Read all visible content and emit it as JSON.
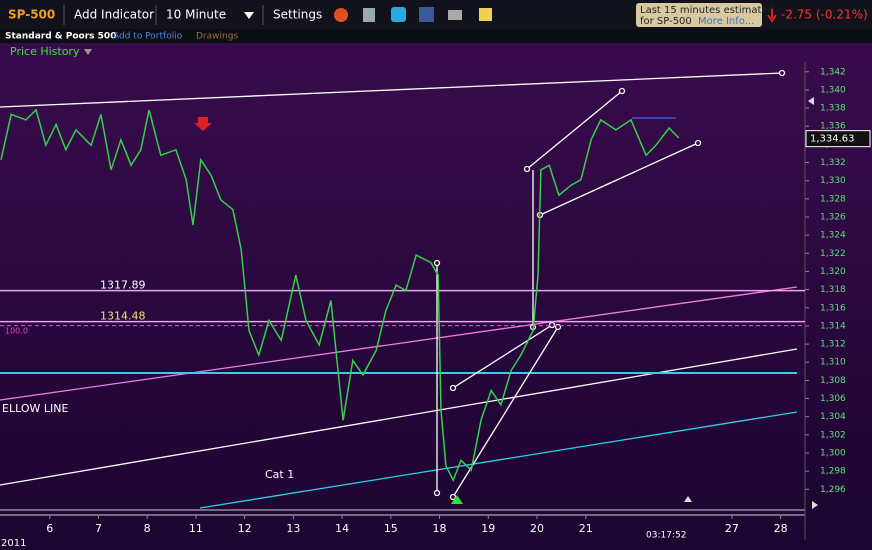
{
  "toolbar": {
    "symbol": "SP-500",
    "add_indicator": "Add Indicator",
    "interval": "10 Minute",
    "settings": "Settings",
    "notice_line1": "Last 15 minutes estimated",
    "notice_line2": "for SP-500",
    "more_info": "More Info...",
    "change": "-2.75 (-0.21%)",
    "name": "Standard & Poors 500",
    "add_to_portfolio": "Add to Portfolio",
    "drawings": "Drawings",
    "price_history": "Price History"
  },
  "chart_data": {
    "type": "line",
    "color": "#35d04a",
    "annotations": {
      "fib": "100.0",
      "yellow_line": "ELLOW LINE",
      "cat": "Cat 1",
      "time": "03:17:52",
      "year": "2011"
    },
    "levels": [
      1317.89,
      1314.48
    ],
    "last_price": {
      "value": 1334.63,
      "label": "1,334.63"
    },
    "x": [
      0.0,
      0.21,
      0.51,
      0.72,
      0.92,
      1.13,
      1.33,
      1.54,
      1.85,
      2.05,
      2.26,
      2.46,
      2.67,
      2.87,
      3.04,
      3.28,
      3.59,
      3.8,
      3.94,
      4.1,
      4.31,
      4.51,
      4.76,
      4.93,
      5.09,
      5.29,
      5.5,
      5.75,
      6.05,
      6.26,
      6.53,
      6.77,
      7.02,
      7.22,
      7.43,
      7.7,
      7.9,
      8.11,
      8.31,
      8.52,
      8.82,
      8.97,
      9.03,
      9.13,
      9.28,
      9.44,
      9.65,
      9.85,
      10.06,
      10.26,
      10.47,
      10.67,
      10.92,
      11.02,
      11.08,
      11.25,
      11.45,
      11.7,
      11.9,
      12.11,
      12.31,
      12.62,
      12.93,
      13.24,
      13.44,
      13.71,
      13.91
    ],
    "values": [
      1332.3,
      1337.3,
      1336.7,
      1337.8,
      1333.9,
      1336.2,
      1333.4,
      1335.6,
      1333.9,
      1337.3,
      1331.2,
      1334.5,
      1331.7,
      1333.4,
      1337.8,
      1332.8,
      1333.4,
      1330.1,
      1325.1,
      1332.3,
      1330.6,
      1327.9,
      1326.8,
      1322.4,
      1313.5,
      1310.8,
      1314.6,
      1312.4,
      1319.6,
      1314.6,
      1311.9,
      1316.8,
      1303.6,
      1310.2,
      1308.6,
      1311.3,
      1315.7,
      1318.5,
      1317.9,
      1321.8,
      1321.0,
      1319.6,
      1304.7,
      1298.6,
      1297.0,
      1299.2,
      1298.1,
      1303.6,
      1306.9,
      1305.3,
      1309.1,
      1310.8,
      1313.5,
      1319.6,
      1331.2,
      1331.7,
      1328.4,
      1329.5,
      1330.1,
      1334.5,
      1336.7,
      1335.6,
      1336.7,
      1332.8,
      1333.9,
      1335.8,
      1334.7
    ],
    "xlim": [
      0,
      16.5
    ],
    "xticks": [
      {
        "value": 1,
        "label": "6"
      },
      {
        "value": 2,
        "label": "7"
      },
      {
        "value": 3,
        "label": "8"
      },
      {
        "value": 4,
        "label": "11"
      },
      {
        "value": 5,
        "label": "12"
      },
      {
        "value": 6,
        "label": "13"
      },
      {
        "value": 7,
        "label": "14"
      },
      {
        "value": 8,
        "label": "15"
      },
      {
        "value": 9,
        "label": "18"
      },
      {
        "value": 10,
        "label": "19"
      },
      {
        "value": 11,
        "label": "20"
      },
      {
        "value": 12,
        "label": "21"
      },
      {
        "value": 15,
        "label": "27"
      },
      {
        "value": 16,
        "label": "28"
      }
    ],
    "ylim": [
      1293.5,
      1345.5
    ],
    "yticks": [
      {
        "value": 1296,
        "label": "1,296"
      },
      {
        "value": 1298,
        "label": "1,298"
      },
      {
        "value": 1300,
        "label": "1,300"
      },
      {
        "value": 1302,
        "label": "1,302"
      },
      {
        "value": 1304,
        "label": "1,304"
      },
      {
        "value": 1306,
        "label": "1,306"
      },
      {
        "value": 1308,
        "label": "1,308"
      },
      {
        "value": 1310,
        "label": "1,310"
      },
      {
        "value": 1312,
        "label": "1,312"
      },
      {
        "value": 1314,
        "label": "1,314"
      },
      {
        "value": 1316,
        "label": "1,316"
      },
      {
        "value": 1318,
        "label": "1,318"
      },
      {
        "value": 1320,
        "label": "1,320"
      },
      {
        "value": 1322,
        "label": "1,322"
      },
      {
        "value": 1324,
        "label": "1,324"
      },
      {
        "value": 1326,
        "label": "1,326"
      },
      {
        "value": 1328,
        "label": "1,328"
      },
      {
        "value": 1330,
        "label": "1,330"
      },
      {
        "value": 1332,
        "label": "1,332"
      },
      {
        "value": 1334,
        "label": "1,334"
      },
      {
        "value": 1336,
        "label": "1,336"
      },
      {
        "value": 1338,
        "label": "1,338"
      },
      {
        "value": 1340,
        "label": "1,340"
      },
      {
        "value": 1342,
        "label": "1,342"
      }
    ]
  }
}
